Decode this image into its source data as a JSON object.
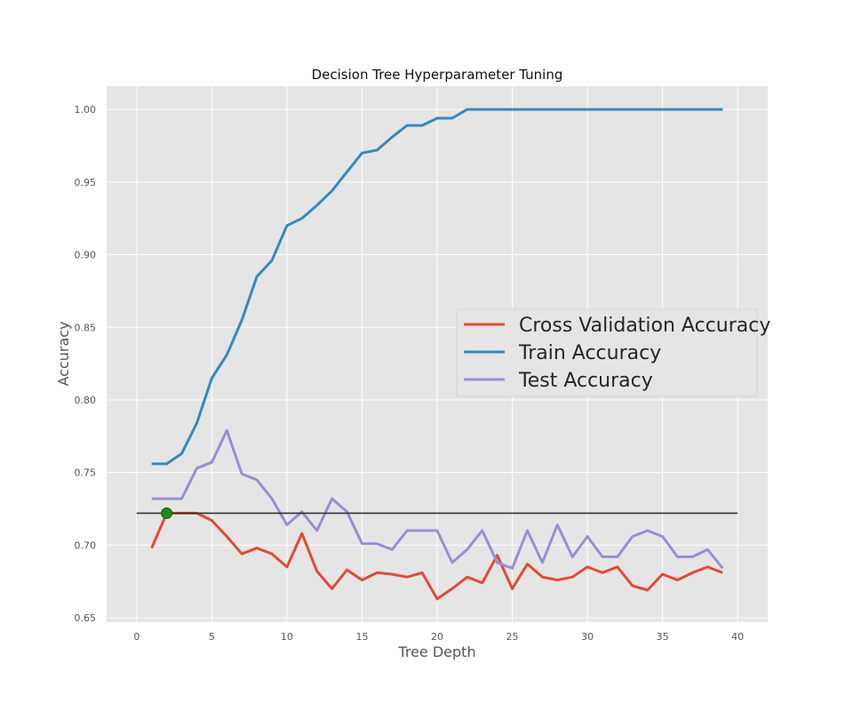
{
  "chart_data": {
    "type": "line",
    "title": "Decision Tree Hyperparameter Tuning",
    "xlabel": "Tree Depth",
    "ylabel": "Accuracy",
    "xlim": [
      -2,
      42
    ],
    "ylim": [
      0.647,
      1.016
    ],
    "xticks": [
      0,
      5,
      10,
      15,
      20,
      25,
      30,
      35,
      40
    ],
    "yticks": [
      0.65,
      0.7,
      0.75,
      0.8,
      0.85,
      0.9,
      0.95,
      1.0
    ],
    "xtick_labels": [
      "0",
      "5",
      "10",
      "15",
      "20",
      "25",
      "30",
      "35",
      "40"
    ],
    "ytick_labels": [
      "0.65",
      "0.70",
      "0.75",
      "0.80",
      "0.85",
      "0.90",
      "0.95",
      "1.00"
    ],
    "grid": true,
    "background": "#e5e5e5",
    "legend_position": "center-right",
    "x": [
      1,
      2,
      3,
      4,
      5,
      6,
      7,
      8,
      9,
      10,
      11,
      12,
      13,
      14,
      15,
      16,
      17,
      18,
      19,
      20,
      21,
      22,
      23,
      24,
      25,
      26,
      27,
      28,
      29,
      30,
      31,
      32,
      33,
      34,
      35,
      36,
      37,
      38,
      39
    ],
    "series": [
      {
        "name": "Cross Validation Accuracy",
        "color": "#e24a33",
        "values": [
          0.698,
          0.722,
          0.722,
          0.722,
          0.717,
          0.706,
          0.694,
          0.698,
          0.694,
          0.685,
          0.708,
          0.682,
          0.67,
          0.683,
          0.676,
          0.681,
          0.68,
          0.678,
          0.681,
          0.663,
          0.67,
          0.678,
          0.674,
          0.693,
          0.67,
          0.687,
          0.678,
          0.676,
          0.678,
          0.685,
          0.681,
          0.685,
          0.672,
          0.669,
          0.68,
          0.676,
          0.681,
          0.685,
          0.681
        ]
      },
      {
        "name": "Train Accuracy",
        "color": "#348abd",
        "values": [
          0.756,
          0.756,
          0.763,
          0.784,
          0.815,
          0.831,
          0.855,
          0.885,
          0.896,
          0.92,
          0.925,
          0.934,
          0.944,
          0.957,
          0.97,
          0.972,
          0.981,
          0.989,
          0.989,
          0.994,
          0.994,
          1.0,
          1.0,
          1.0,
          1.0,
          1.0,
          1.0,
          1.0,
          1.0,
          1.0,
          1.0,
          1.0,
          1.0,
          1.0,
          1.0,
          1.0,
          1.0,
          1.0,
          1.0
        ]
      },
      {
        "name": "Test Accuracy",
        "color": "#988ed5",
        "values": [
          0.732,
          0.732,
          0.732,
          0.753,
          0.757,
          0.779,
          0.749,
          0.745,
          0.732,
          0.714,
          0.723,
          0.71,
          0.732,
          0.723,
          0.701,
          0.701,
          0.697,
          0.71,
          0.71,
          0.71,
          0.688,
          0.697,
          0.71,
          0.688,
          0.684,
          0.71,
          0.688,
          0.714,
          0.692,
          0.706,
          0.692,
          0.692,
          0.706,
          0.71,
          0.706,
          0.692,
          0.692,
          0.697,
          0.684
        ]
      }
    ],
    "hline": {
      "y": 0.722,
      "color": "#333333"
    },
    "highlight_point": {
      "x": 2,
      "y": 0.722,
      "color": "#1a8c1a"
    }
  }
}
